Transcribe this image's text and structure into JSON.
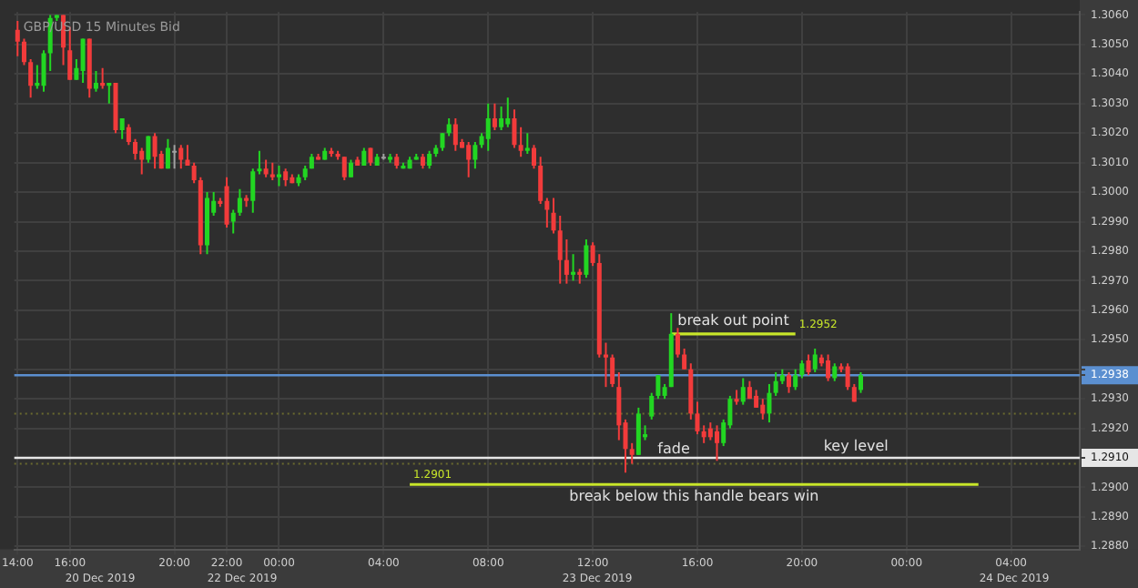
{
  "chart_data": {
    "type": "candlestick",
    "title": "GBP/USD 15 Minutes Bid",
    "categories": [
      "14:00",
      null,
      null,
      null,
      null,
      null,
      null,
      null,
      "16:00",
      null,
      null,
      null,
      null,
      null,
      null,
      null,
      null,
      null,
      null,
      null,
      null,
      null,
      null,
      null,
      "20:00",
      null,
      null,
      null,
      null,
      null,
      null,
      null,
      "22:00",
      null,
      null,
      null,
      null,
      null,
      null,
      null,
      "00:00",
      null,
      null,
      null,
      null,
      null,
      null,
      null,
      null,
      null,
      null,
      null,
      null,
      null,
      null,
      null,
      "04:00",
      null,
      null,
      null,
      null,
      null,
      null,
      null,
      null,
      null,
      null,
      null,
      null,
      null,
      null,
      null,
      "08:00",
      null,
      null,
      null,
      null,
      null,
      null,
      null,
      null,
      null,
      null,
      null,
      null,
      null,
      null,
      null,
      "12:00",
      null,
      null,
      null,
      null,
      null,
      null,
      null,
      null,
      null,
      null,
      null,
      null,
      null,
      null,
      null,
      "16:00",
      null,
      null,
      null,
      null,
      null,
      null,
      null,
      null,
      null,
      null,
      null,
      null,
      null,
      null,
      null,
      "20:00",
      null,
      null,
      null,
      null,
      null,
      null,
      null,
      null,
      null,
      null,
      null,
      null,
      null,
      null,
      null,
      "00:00",
      null,
      null,
      null,
      null,
      null,
      null,
      null,
      null,
      null,
      null,
      null,
      null,
      null,
      null,
      null,
      "04:00",
      null,
      null,
      null,
      null,
      null,
      null,
      null,
      null,
      null,
      null
    ],
    "ohlc": [
      [
        1.3055,
        1.3058,
        1.3046,
        1.3051
      ],
      [
        1.3051,
        1.3052,
        1.3043,
        1.3044
      ],
      [
        1.3044,
        1.3045,
        1.3032,
        1.3036
      ],
      [
        1.3036,
        1.3043,
        1.3035,
        1.3037
      ],
      [
        1.3036,
        1.3048,
        1.3034,
        1.3047
      ],
      [
        1.3047,
        1.306,
        1.3041,
        1.3059
      ],
      [
        1.3059,
        1.306,
        1.3058,
        1.306
      ],
      [
        1.306,
        1.306,
        1.3043,
        1.3049
      ],
      [
        1.3048,
        1.3056,
        1.3038,
        1.3038
      ],
      [
        1.3038,
        1.3045,
        1.3038,
        1.3042
      ],
      [
        1.3041,
        1.3052,
        1.3037,
        1.3052
      ],
      [
        1.3052,
        1.3052,
        1.3032,
        1.3035
      ],
      [
        1.3035,
        1.3041,
        1.3034,
        1.3037
      ],
      [
        1.3037,
        1.3042,
        1.3035,
        1.3036
      ],
      [
        1.3036,
        1.3037,
        1.303,
        1.3037
      ],
      [
        1.3037,
        1.3037,
        1.302,
        1.3021
      ],
      [
        1.3021,
        1.3025,
        1.3018,
        1.3025
      ],
      [
        1.3022,
        1.3023,
        1.3016,
        1.3017
      ],
      [
        1.3017,
        1.3018,
        1.3011,
        1.3013
      ],
      [
        1.3014,
        1.3015,
        1.3006,
        1.3011
      ],
      [
        1.3011,
        1.3019,
        1.301,
        1.3019
      ],
      [
        1.3019,
        1.302,
        1.3008,
        1.3012
      ],
      [
        1.3013,
        1.3014,
        1.3008,
        1.3008
      ],
      [
        1.3008,
        1.3018,
        1.3008,
        1.3015
      ],
      [
        1.3014,
        1.3016,
        1.3008,
        1.3014
      ],
      [
        1.3015,
        1.3016,
        1.3008,
        1.3011
      ],
      [
        1.3011,
        1.3016,
        1.3009,
        1.3009
      ],
      [
        1.3009,
        1.301,
        1.3003,
        1.3004
      ],
      [
        1.3004,
        1.3005,
        1.2979,
        1.2982
      ],
      [
        1.2982,
        1.3,
        1.2979,
        1.2998
      ],
      [
        1.2993,
        1.3,
        1.2992,
        1.2997
      ],
      [
        1.2997,
        1.2998,
        1.2995,
        1.2996
      ],
      [
        1.3002,
        1.3005,
        1.2988,
        1.2989
      ],
      [
        1.299,
        1.2994,
        1.2986,
        1.2993
      ],
      [
        1.2993,
        1.3001,
        1.2992,
        1.2998
      ],
      [
        1.2998,
        1.2999,
        1.2995,
        1.2997
      ],
      [
        1.2997,
        1.3008,
        1.2993,
        1.3007
      ],
      [
        1.3007,
        1.3014,
        1.3006,
        1.3008
      ],
      [
        1.3008,
        1.3011,
        1.3005,
        1.3006
      ],
      [
        1.3006,
        1.301,
        1.3004,
        1.3005
      ],
      [
        1.3005,
        1.3009,
        1.3002,
        1.3006
      ],
      [
        1.3007,
        1.3008,
        1.3002,
        1.3004
      ],
      [
        1.3005,
        1.3006,
        1.3003,
        1.3003
      ],
      [
        1.3003,
        1.3006,
        1.3002,
        1.3005
      ],
      [
        1.3005,
        1.3009,
        1.3004,
        1.3008
      ],
      [
        1.3008,
        1.3013,
        1.3008,
        1.3012
      ],
      [
        1.3012,
        1.3013,
        1.3011,
        1.3011
      ],
      [
        1.3011,
        1.3015,
        1.3011,
        1.3014
      ],
      [
        1.3014,
        1.3015,
        1.3012,
        1.3013
      ],
      [
        1.3013,
        1.3014,
        1.3011,
        1.3012
      ],
      [
        1.3012,
        1.3012,
        1.3004,
        1.3005
      ],
      [
        1.3005,
        1.3011,
        1.3005,
        1.301
      ],
      [
        1.3011,
        1.3012,
        1.3009,
        1.3009
      ],
      [
        1.3009,
        1.3015,
        1.3009,
        1.3014
      ],
      [
        1.3015,
        1.3015,
        1.3009,
        1.301
      ],
      [
        1.3009,
        1.3013,
        1.3009,
        1.3012
      ],
      [
        1.3012,
        1.3013,
        1.3011,
        1.3012
      ],
      [
        1.3011,
        1.3013,
        1.301,
        1.3012
      ],
      [
        1.3012,
        1.3013,
        1.3008,
        1.3009
      ],
      [
        1.3008,
        1.301,
        1.3008,
        1.3009
      ],
      [
        1.3008,
        1.3012,
        1.3008,
        1.3011
      ],
      [
        1.3011,
        1.3013,
        1.3011,
        1.3012
      ],
      [
        1.3012,
        1.3013,
        1.3008,
        1.3009
      ],
      [
        1.3009,
        1.3014,
        1.3008,
        1.3013
      ],
      [
        1.3013,
        1.3016,
        1.3012,
        1.3015
      ],
      [
        1.3015,
        1.302,
        1.3014,
        1.302
      ],
      [
        1.302,
        1.3025,
        1.3019,
        1.3023
      ],
      [
        1.3023,
        1.3025,
        1.3014,
        1.3016
      ],
      [
        1.3017,
        1.3018,
        1.3015,
        1.3015
      ],
      [
        1.3016,
        1.3017,
        1.3005,
        1.3011
      ],
      [
        1.3011,
        1.3017,
        1.3008,
        1.3016
      ],
      [
        1.3016,
        1.302,
        1.3015,
        1.3019
      ],
      [
        1.3018,
        1.303,
        1.3014,
        1.3025
      ],
      [
        1.3025,
        1.303,
        1.3021,
        1.3022
      ],
      [
        1.3022,
        1.3029,
        1.3021,
        1.3025
      ],
      [
        1.3023,
        1.3032,
        1.3022,
        1.3025
      ],
      [
        1.3025,
        1.3028,
        1.3015,
        1.3016
      ],
      [
        1.3016,
        1.3022,
        1.3012,
        1.3014
      ],
      [
        1.3014,
        1.302,
        1.3013,
        1.3015
      ],
      [
        1.3015,
        1.3016,
        1.3008,
        1.3009
      ],
      [
        1.3009,
        1.3012,
        1.2996,
        1.2997
      ],
      [
        1.2997,
        1.2998,
        1.2988,
        1.2994
      ],
      [
        1.2993,
        1.2998,
        1.2986,
        1.2987
      ],
      [
        1.2987,
        1.2992,
        1.2969,
        1.2977
      ],
      [
        1.2977,
        1.2984,
        1.2969,
        1.2972
      ],
      [
        1.2972,
        1.2979,
        1.297,
        1.2973
      ],
      [
        1.2973,
        1.2974,
        1.2969,
        1.2972
      ],
      [
        1.2972,
        1.2984,
        1.2971,
        1.2982
      ],
      [
        1.2982,
        1.2983,
        1.2975,
        1.2976
      ],
      [
        1.2976,
        1.2979,
        1.2944,
        1.2945
      ],
      [
        1.2945,
        1.2949,
        1.2934,
        1.2944
      ],
      [
        1.2944,
        1.2945,
        1.2934,
        1.2935
      ],
      [
        1.2934,
        1.2939,
        1.2916,
        1.2921
      ],
      [
        1.2922,
        1.2923,
        1.2905,
        1.2913
      ],
      [
        1.2913,
        1.2915,
        1.2908,
        1.2911
      ],
      [
        1.2911,
        1.2927,
        1.2911,
        1.2925
      ],
      [
        1.2917,
        1.2921,
        1.2916,
        1.2918
      ],
      [
        1.2924,
        1.2932,
        1.2923,
        1.2931
      ],
      [
        1.2931,
        1.2938,
        1.293,
        1.2938
      ],
      [
        1.2931,
        1.2935,
        1.293,
        1.2934
      ],
      [
        1.2934,
        1.2959,
        1.2934,
        1.2952
      ],
      [
        1.2952,
        1.2954,
        1.2944,
        1.2945
      ],
      [
        1.2945,
        1.2947,
        1.294,
        1.294
      ],
      [
        1.294,
        1.2942,
        1.2923,
        1.2925
      ],
      [
        1.2925,
        1.2929,
        1.2918,
        1.2919
      ],
      [
        1.2919,
        1.2921,
        1.2915,
        1.2917
      ],
      [
        1.292,
        1.2922,
        1.2916,
        1.2917
      ],
      [
        1.2919,
        1.2921,
        1.2909,
        1.2915
      ],
      [
        1.2915,
        1.2923,
        1.2914,
        1.2922
      ],
      [
        1.2921,
        1.2931,
        1.292,
        1.293
      ],
      [
        1.293,
        1.2933,
        1.2928,
        1.2929
      ],
      [
        1.2929,
        1.2937,
        1.2928,
        1.2934
      ],
      [
        1.2934,
        1.2936,
        1.293,
        1.293
      ],
      [
        1.2931,
        1.2933,
        1.2927,
        1.2927
      ],
      [
        1.2928,
        1.293,
        1.2923,
        1.2925
      ],
      [
        1.2925,
        1.2935,
        1.2922,
        1.2932
      ],
      [
        1.2932,
        1.2939,
        1.2931,
        1.2936
      ],
      [
        1.2936,
        1.294,
        1.2935,
        1.2938
      ],
      [
        1.2938,
        1.2939,
        1.2932,
        1.2934
      ],
      [
        1.2934,
        1.294,
        1.2933,
        1.2938
      ],
      [
        1.2938,
        1.2943,
        1.2937,
        1.2942
      ],
      [
        1.2943,
        1.2945,
        1.2938,
        1.2939
      ],
      [
        1.294,
        1.2947,
        1.2939,
        1.2945
      ],
      [
        1.2944,
        1.2945,
        1.2941,
        1.2942
      ],
      [
        1.2943,
        1.2945,
        1.2936,
        1.2937
      ],
      [
        1.2937,
        1.2942,
        1.2936,
        1.2941
      ],
      [
        1.2941,
        1.2942,
        1.2939,
        1.294
      ],
      [
        1.2941,
        1.2942,
        1.2933,
        1.2934
      ],
      [
        1.2934,
        1.2935,
        1.2929,
        1.2929
      ],
      [
        1.2933,
        1.2939,
        1.2932,
        1.2938
      ],
      null,
      null,
      null,
      null,
      null,
      null,
      null,
      null,
      null,
      null,
      null,
      null,
      null,
      null,
      null,
      null,
      null,
      null,
      null,
      null,
      null,
      null,
      null,
      null,
      null,
      null,
      null,
      null,
      null,
      null,
      null,
      null,
      null
    ],
    "colors": [
      "#f23b3b",
      "#f23b3b",
      "#f23b3b",
      "#22d622",
      "#22d622",
      "#22d622",
      "#22d622",
      "#f23b3b",
      "#f23b3b",
      "#22d622",
      "#22d622",
      "#f23b3b",
      "#22d622",
      "#f23b3b",
      "#22d622",
      "#f23b3b",
      "#22d622",
      "#f23b3b",
      "#f23b3b",
      "#f23b3b",
      "#22d622",
      "#f23b3b",
      "#f23b3b",
      "#22d622",
      "#a0a0a0",
      "#f23b3b",
      "#f23b3b",
      "#f23b3b",
      "#f23b3b",
      "#22d622",
      "#22d622",
      "#f23b3b",
      "#f23b3b",
      "#22d622",
      "#22d622",
      "#f23b3b",
      "#22d622",
      "#22d622",
      "#f23b3b",
      "#f23b3b",
      "#22d622",
      "#f23b3b",
      "#f23b3b",
      "#22d622",
      "#22d622",
      "#22d622",
      "#f23b3b",
      "#22d622",
      "#f23b3b",
      "#f23b3b",
      "#f23b3b",
      "#22d622",
      "#f23b3b",
      "#22d622",
      "#f23b3b",
      "#22d622",
      "#a0a0a0",
      "#22d622",
      "#f23b3b",
      "#22d622",
      "#22d622",
      "#22d622",
      "#f23b3b",
      "#22d622",
      "#22d622",
      "#22d622",
      "#22d622",
      "#f23b3b",
      "#f23b3b",
      "#f23b3b",
      "#22d622",
      "#22d622",
      "#22d622",
      "#f23b3b",
      "#22d622",
      "#22d622",
      "#f23b3b",
      "#f23b3b",
      "#22d622",
      "#f23b3b",
      "#f23b3b",
      "#f23b3b",
      "#f23b3b",
      "#f23b3b",
      "#f23b3b",
      "#22d622",
      "#f23b3b",
      "#22d622",
      "#f23b3b",
      "#f23b3b",
      "#f23b3b",
      "#f23b3b",
      "#f23b3b",
      "#f23b3b",
      "#f23b3b",
      "#22d622",
      "#22d622",
      "#22d622",
      "#22d622",
      "#22d622",
      "#22d622",
      "#f23b3b",
      "#f23b3b",
      "#f23b3b",
      "#f23b3b",
      "#f23b3b",
      "#f23b3b",
      "#f23b3b",
      "#22d622",
      "#22d622",
      "#f23b3b",
      "#22d622",
      "#f23b3b",
      "#f23b3b",
      "#f23b3b",
      "#22d622",
      "#22d622",
      "#22d622",
      "#f23b3b",
      "#22d622",
      "#22d622",
      "#f23b3b",
      "#22d622",
      "#f23b3b",
      "#f23b3b",
      "#22d622",
      "#f23b3b",
      "#f23b3b",
      "#f23b3b",
      "#22d622",
      null,
      null,
      null,
      null,
      null,
      null,
      null,
      null,
      null,
      null,
      null,
      null,
      null,
      null,
      null,
      null,
      null,
      null,
      null,
      null,
      null,
      null,
      null,
      null,
      null,
      null,
      null,
      null,
      null,
      null,
      null,
      null,
      null
    ],
    "series": [
      {
        "type": "line",
        "name": "break out point",
        "color": "#c8e62a",
        "values": [
          null,
          null,
          null,
          null,
          null,
          null,
          null,
          null,
          null,
          null,
          null,
          null,
          null,
          null,
          null,
          null,
          null,
          null,
          null,
          null,
          null,
          null,
          null,
          null,
          null,
          null,
          null,
          null,
          null,
          null,
          null,
          null,
          null,
          null,
          null,
          null,
          null,
          null,
          null,
          null,
          null,
          null,
          null,
          null,
          null,
          null,
          null,
          null,
          null,
          null,
          null,
          null,
          null,
          null,
          null,
          null,
          null,
          null,
          null,
          null,
          null,
          null,
          null,
          null,
          null,
          null,
          null,
          null,
          null,
          null,
          null,
          null,
          null,
          null,
          null,
          null,
          null,
          null,
          null,
          null,
          null,
          null,
          null,
          null,
          null,
          null,
          null,
          null,
          null,
          null,
          null,
          null,
          null,
          null,
          null,
          null,
          null,
          null,
          null,
          null,
          1.2952,
          null,
          null,
          null,
          null,
          null,
          null,
          null,
          null,
          null,
          null,
          null,
          null,
          null,
          null,
          null,
          null,
          null,
          null,
          1.2952,
          null,
          null,
          null,
          null,
          null,
          null,
          null,
          null,
          null,
          null,
          null,
          null,
          null,
          null,
          null,
          null,
          null,
          null,
          null,
          null,
          null,
          null,
          null,
          null,
          null,
          null,
          null,
          null,
          null,
          null,
          null,
          null,
          null,
          null,
          null,
          null,
          null,
          null,
          null,
          null,
          null,
          null,
          null
        ],
        "value_labels": [
          null,
          null,
          null,
          null,
          null,
          null,
          null,
          null,
          null,
          null,
          null,
          null,
          null,
          null,
          null,
          null,
          null,
          null,
          null,
          null,
          null,
          null,
          null,
          null,
          null,
          null,
          null,
          null,
          null,
          null,
          null,
          null,
          null,
          null,
          null,
          null,
          null,
          null,
          null,
          null,
          null,
          null,
          null,
          null,
          null,
          null,
          null,
          null,
          null,
          null,
          null,
          null,
          null,
          null,
          null,
          null,
          null,
          null,
          null,
          null,
          null,
          null,
          null,
          null,
          null,
          null,
          null,
          null,
          null,
          null,
          null,
          null,
          null,
          null,
          null,
          null,
          null,
          null,
          null,
          null,
          null,
          null,
          null,
          null,
          null,
          null,
          null,
          null,
          null,
          null,
          null,
          null,
          null,
          null,
          null,
          null,
          null,
          null,
          null,
          null,
          null,
          null,
          null,
          null,
          null,
          null,
          null,
          null,
          null,
          null,
          null,
          null,
          null,
          null,
          null,
          null,
          null,
          null,
          null,
          "1.2952",
          null,
          null,
          null,
          null,
          null,
          null,
          null,
          null,
          null,
          null,
          null,
          null,
          null,
          null,
          null,
          null,
          null,
          null,
          null,
          null,
          null,
          null,
          null,
          null,
          null,
          null,
          null,
          null,
          null,
          null,
          null,
          null,
          null,
          null,
          null,
          null,
          null,
          null,
          null,
          null,
          null,
          null,
          null
        ]
      },
      {
        "type": "line",
        "name": "break below this handle bears win",
        "color": "#c8e62a",
        "values": [
          null,
          null,
          null,
          null,
          null,
          null,
          null,
          null,
          null,
          null,
          null,
          null,
          null,
          null,
          null,
          null,
          null,
          null,
          null,
          null,
          null,
          null,
          null,
          null,
          null,
          null,
          null,
          null,
          null,
          null,
          null,
          null,
          null,
          null,
          null,
          null,
          null,
          null,
          null,
          null,
          null,
          null,
          null,
          null,
          null,
          null,
          null,
          null,
          null,
          null,
          null,
          null,
          null,
          null,
          null,
          null,
          null,
          null,
          null,
          null,
          1.2901,
          null,
          null,
          null,
          null,
          null,
          null,
          null,
          null,
          null,
          null,
          null,
          null,
          null,
          null,
          null,
          null,
          null,
          null,
          null,
          null,
          null,
          null,
          null,
          null,
          null,
          null,
          null,
          null,
          null,
          null,
          null,
          null,
          null,
          null,
          null,
          null,
          null,
          null,
          null,
          null,
          null,
          null,
          null,
          null,
          null,
          null,
          null,
          null,
          null,
          null,
          null,
          null,
          null,
          null,
          null,
          null,
          null,
          null,
          null,
          null,
          null,
          null,
          null,
          null,
          null,
          null,
          null,
          null,
          null,
          null,
          null,
          null,
          null,
          null,
          null,
          null,
          null,
          null,
          null,
          null,
          null,
          null,
          null,
          null,
          null,
          null,
          1.2901,
          null,
          null,
          null,
          null,
          null,
          null,
          null,
          null,
          null,
          null,
          null,
          null,
          null,
          null,
          null
        ],
        "value_labels": [
          null,
          null,
          null,
          null,
          null,
          null,
          null,
          null,
          null,
          null,
          null,
          null,
          null,
          null,
          null,
          null,
          null,
          null,
          null,
          null,
          null,
          null,
          null,
          null,
          null,
          null,
          null,
          null,
          null,
          null,
          null,
          null,
          null,
          null,
          null,
          null,
          null,
          null,
          null,
          null,
          null,
          null,
          null,
          null,
          null,
          null,
          null,
          null,
          null,
          null,
          null,
          null,
          null,
          null,
          null,
          null,
          null,
          null,
          null,
          null,
          "1.2901",
          null,
          null,
          null,
          null,
          null,
          null,
          null,
          null,
          null,
          null,
          null,
          null,
          null,
          null,
          null,
          null,
          null,
          null,
          null,
          null,
          null,
          null,
          null,
          null,
          null,
          null,
          null,
          null,
          null,
          null,
          null,
          null,
          null,
          null,
          null,
          null,
          null,
          null,
          null,
          null,
          null,
          null,
          null,
          null,
          null,
          null,
          null,
          null,
          null,
          null,
          null,
          null,
          null,
          null,
          null,
          null,
          null,
          null,
          null,
          null,
          null,
          null,
          null,
          null,
          null,
          null,
          null,
          null,
          null,
          null,
          null,
          null,
          null,
          null,
          null,
          null,
          null,
          null,
          null,
          null,
          null,
          null,
          null,
          null,
          null,
          null,
          null,
          null,
          null,
          null,
          null,
          null,
          null,
          null,
          null,
          null,
          null,
          null,
          null,
          null,
          null,
          null
        ]
      }
    ],
    "ref_lines": [
      {
        "axis": "y",
        "value": 1.291,
        "label": "key level",
        "color": "#e6e6e6"
      },
      {
        "axis": "y",
        "value": 1.2938,
        "color": "#5b8fd0"
      },
      {
        "axis": "y",
        "value": 1.2925,
        "color": "#6b6b2e",
        "line_style": "dotted"
      },
      {
        "axis": "y",
        "value": 1.2908,
        "color": "#6b6b2e",
        "line_style": "dotted"
      }
    ],
    "annotations": [
      "fade",
      "20 Dec 2019",
      "22 Dec 2019",
      "23 Dec 2019",
      "24 Dec 2019"
    ],
    "ylim": [
      1.2879,
      1.3061
    ],
    "yticks": [
      {
        "value": 1.288,
        "label": "1.2880"
      },
      {
        "value": 1.289,
        "label": "1.2890"
      },
      {
        "value": 1.29,
        "label": "1.2900"
      },
      {
        "value": 1.291,
        "label": "1.2910"
      },
      {
        "value": 1.292,
        "label": "1.2920"
      },
      {
        "value": 1.293,
        "label": "1.2930"
      },
      {
        "value": 1.2938,
        "label": "1.2938"
      },
      {
        "value": 1.294,
        "label": null
      },
      {
        "value": 1.295,
        "label": "1.2950"
      },
      {
        "value": 1.296,
        "label": "1.2960"
      },
      {
        "value": 1.297,
        "label": "1.2970"
      },
      {
        "value": 1.298,
        "label": "1.2980"
      },
      {
        "value": 1.299,
        "label": "1.2990"
      },
      {
        "value": 1.3,
        "label": "1.3000"
      },
      {
        "value": 1.301,
        "label": "1.3010"
      },
      {
        "value": 1.302,
        "label": "1.3020"
      },
      {
        "value": 1.303,
        "label": "1.3030"
      },
      {
        "value": 1.304,
        "label": "1.3040"
      },
      {
        "value": 1.305,
        "label": "1.3050"
      },
      {
        "value": 1.306,
        "label": "1.3060"
      }
    ],
    "grid": true
  }
}
